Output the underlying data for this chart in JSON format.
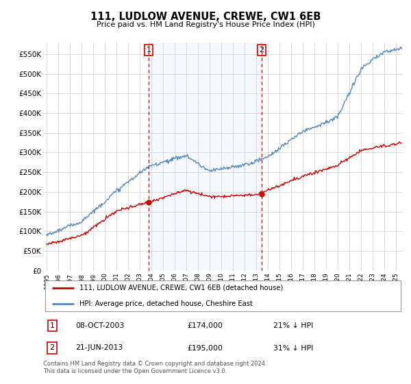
{
  "title": "111, LUDLOW AVENUE, CREWE, CW1 6EB",
  "subtitle": "Price paid vs. HM Land Registry's House Price Index (HPI)",
  "legend_line1": "111, LUDLOW AVENUE, CREWE, CW1 6EB (detached house)",
  "legend_line2": "HPI: Average price, detached house, Cheshire East",
  "footer": "Contains HM Land Registry data © Crown copyright and database right 2024.\nThis data is licensed under the Open Government Licence v3.0.",
  "annotation1_label": "1",
  "annotation1_date": "08-OCT-2003",
  "annotation1_price": "£174,000",
  "annotation1_hpi": "21% ↓ HPI",
  "annotation2_label": "2",
  "annotation2_date": "21-JUN-2013",
  "annotation2_price": "£195,000",
  "annotation2_hpi": "31% ↓ HPI",
  "red_line_color": "#cc0000",
  "blue_line_color": "#5588bb",
  "annotation_vline_color": "#cc0000",
  "grid_color": "#cccccc",
  "background_color": "#ffffff",
  "shade_color": "#ddeeff",
  "ylim": [
    0,
    580000
  ],
  "yticks": [
    0,
    50000,
    100000,
    150000,
    200000,
    250000,
    300000,
    350000,
    400000,
    450000,
    500000,
    550000
  ],
  "ytick_labels": [
    "£0",
    "£50K",
    "£100K",
    "£150K",
    "£200K",
    "£250K",
    "£300K",
    "£350K",
    "£400K",
    "£450K",
    "£500K",
    "£550K"
  ],
  "sale1_year": 2003.77,
  "sale1_price": 174000,
  "sale2_year": 2013.47,
  "sale2_price": 195000
}
